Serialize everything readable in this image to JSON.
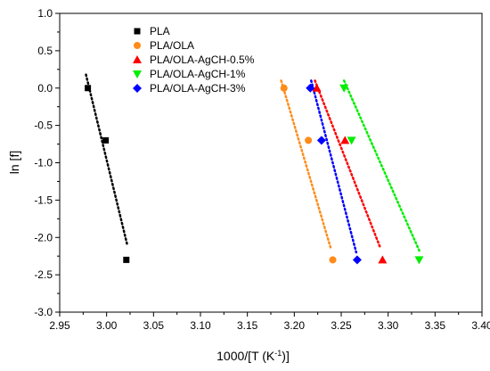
{
  "chart_data": {
    "type": "scatter",
    "xlabel": "1000/[T (K",
    "xlabel_sup": "-1",
    "xlabel_tail": ")]",
    "ylabel": "ln [f]",
    "xlim": [
      2.95,
      3.4
    ],
    "ylim": [
      -3.0,
      1.0
    ],
    "x_ticks": [
      "2.95",
      "3.00",
      "3.05",
      "3.10",
      "3.15",
      "3.20",
      "3.25",
      "3.30",
      "3.35",
      "3.40"
    ],
    "y_ticks": [
      "1.0",
      "0.5",
      "0.0",
      "-0.5",
      "-1.0",
      "-1.5",
      "-2.0",
      "-2.5",
      "-3.0"
    ],
    "grid": false,
    "legend_position": "top-left",
    "series": [
      {
        "name": "PLA",
        "color": "#000000",
        "marker": "square",
        "x": [
          2.98,
          2.999,
          3.021
        ],
        "y": [
          0.0,
          -0.7,
          -2.3
        ],
        "fit": {
          "x": [
            2.978,
            3.022
          ],
          "y": [
            0.18,
            -2.1
          ]
        }
      },
      {
        "name": "PLA/OLA",
        "color": "#ff8c1a",
        "marker": "circle",
        "x": [
          3.189,
          3.215,
          3.241
        ],
        "y": [
          0.0,
          -0.7,
          -2.3
        ],
        "fit": {
          "x": [
            3.186,
            3.239
          ],
          "y": [
            0.1,
            -2.15
          ]
        }
      },
      {
        "name": "PLA/OLA-AgCH-0.5%",
        "color": "#ff0000",
        "marker": "triangle-up",
        "x": [
          3.224,
          3.254,
          3.294
        ],
        "y": [
          0.0,
          -0.7,
          -2.3
        ],
        "fit": {
          "x": [
            3.222,
            3.292
          ],
          "y": [
            0.1,
            -2.15
          ]
        }
      },
      {
        "name": "PLA/OLA-AgCH-1%",
        "color": "#00ee00",
        "marker": "triangle-down",
        "x": [
          3.253,
          3.261,
          3.333
        ],
        "y": [
          0.0,
          -0.7,
          -2.3
        ],
        "fit": {
          "x": [
            3.253,
            3.334
          ],
          "y": [
            0.1,
            -2.2
          ]
        }
      },
      {
        "name": "PLA/OLA-AgCH-3%",
        "color": "#0000ff",
        "marker": "diamond",
        "x": [
          3.217,
          3.229,
          3.267
        ],
        "y": [
          0.0,
          -0.7,
          -2.3
        ],
        "fit": {
          "x": [
            3.218,
            3.266
          ],
          "y": [
            0.1,
            -2.2
          ]
        }
      }
    ]
  }
}
